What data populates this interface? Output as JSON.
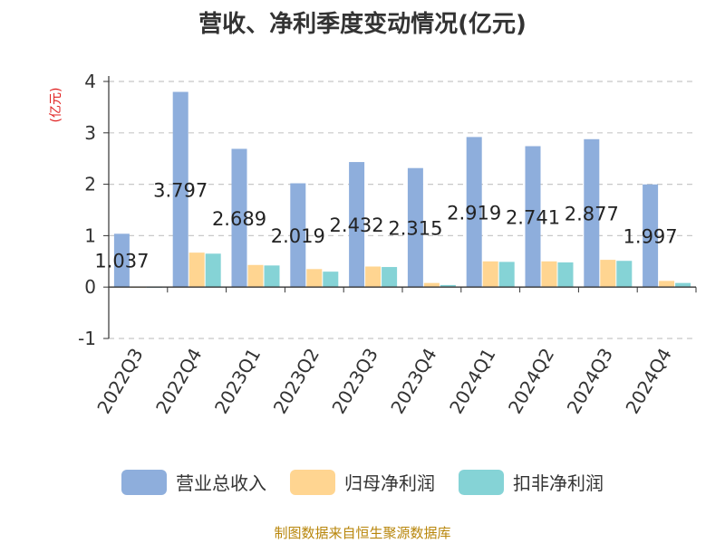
{
  "title": "营收、净利季度变动情况(亿元)",
  "source_note": "制图数据来自恒生聚源数据库",
  "chart_data": {
    "type": "bar",
    "title": "营收、净利季度变动情况(亿元)",
    "ylabel": "(亿元)",
    "xlabel": "",
    "ylim": [
      -1,
      4
    ],
    "yticks": [
      -1,
      0,
      1,
      2,
      3,
      4
    ],
    "grid": true,
    "legend_position": "bottom",
    "categories": [
      "2022Q3",
      "2022Q4",
      "2023Q1",
      "2023Q2",
      "2023Q3",
      "2023Q4",
      "2024Q1",
      "2024Q2",
      "2024Q3",
      "2024Q4"
    ],
    "series": [
      {
        "name": "营业总收入",
        "color": "#8eaedc",
        "values": [
          1.037,
          3.797,
          2.689,
          2.019,
          2.432,
          2.315,
          2.919,
          2.741,
          2.877,
          1.997
        ]
      },
      {
        "name": "归母净利润",
        "color": "#ffd591",
        "values": [
          0.0,
          0.67,
          0.43,
          0.35,
          0.4,
          0.08,
          0.5,
          0.5,
          0.53,
          0.12
        ]
      },
      {
        "name": "扣非净利润",
        "color": "#85d3d6",
        "values": [
          0.0,
          0.65,
          0.42,
          0.3,
          0.39,
          0.04,
          0.49,
          0.48,
          0.51,
          0.08
        ]
      }
    ],
    "data_labels": [
      "1.037",
      "3.797",
      "2.689",
      "2.019",
      "2.432",
      "2.315",
      "2.919",
      "2.741",
      "2.877",
      "1.997"
    ]
  }
}
